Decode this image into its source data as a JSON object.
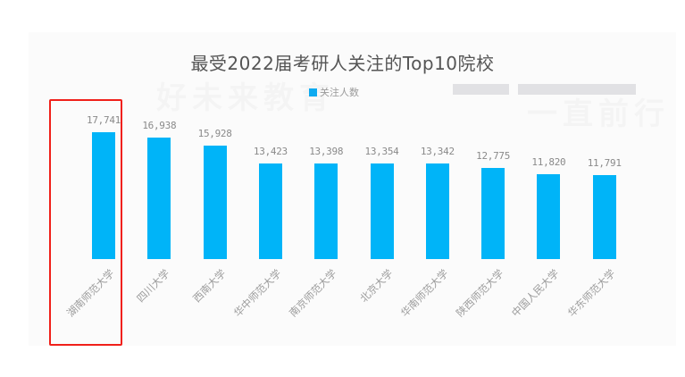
{
  "chart_data": {
    "type": "bar",
    "title": "最受2022届考研人关注的Top10院校",
    "legend": [
      "关注人数"
    ],
    "legend_position": "top",
    "xlabel": "",
    "ylabel": "",
    "grid": false,
    "ylim": [
      0,
      17741
    ],
    "categories": [
      "湖南师范大学",
      "四川大学",
      "西南大学",
      "华中师范大学",
      "南京师范大学",
      "北京大学",
      "华南师范大学",
      "陕西师范大学",
      "中国人民大学",
      "华东师范大学"
    ],
    "value_labels": [
      "17,741",
      "16,938",
      "15,928",
      "13,423",
      "13,398",
      "13,354",
      "13,342",
      "12,775",
      "11,820",
      "11,791"
    ],
    "series": [
      {
        "name": "关注人数",
        "color": "#00b4f8",
        "values": [
          17741,
          16938,
          15928,
          13423,
          13398,
          13354,
          13342,
          12775,
          11820,
          11791
        ]
      }
    ],
    "annotations": [
      {
        "type": "highlight-box",
        "target": "湖南师范大学",
        "color": "#f0201a"
      }
    ]
  },
  "watermark": {
    "left": "好未来教育",
    "right": "一直前行"
  },
  "colors": {
    "bar": "#00b4f8",
    "highlight": "#f0201a",
    "title": "#555555"
  }
}
